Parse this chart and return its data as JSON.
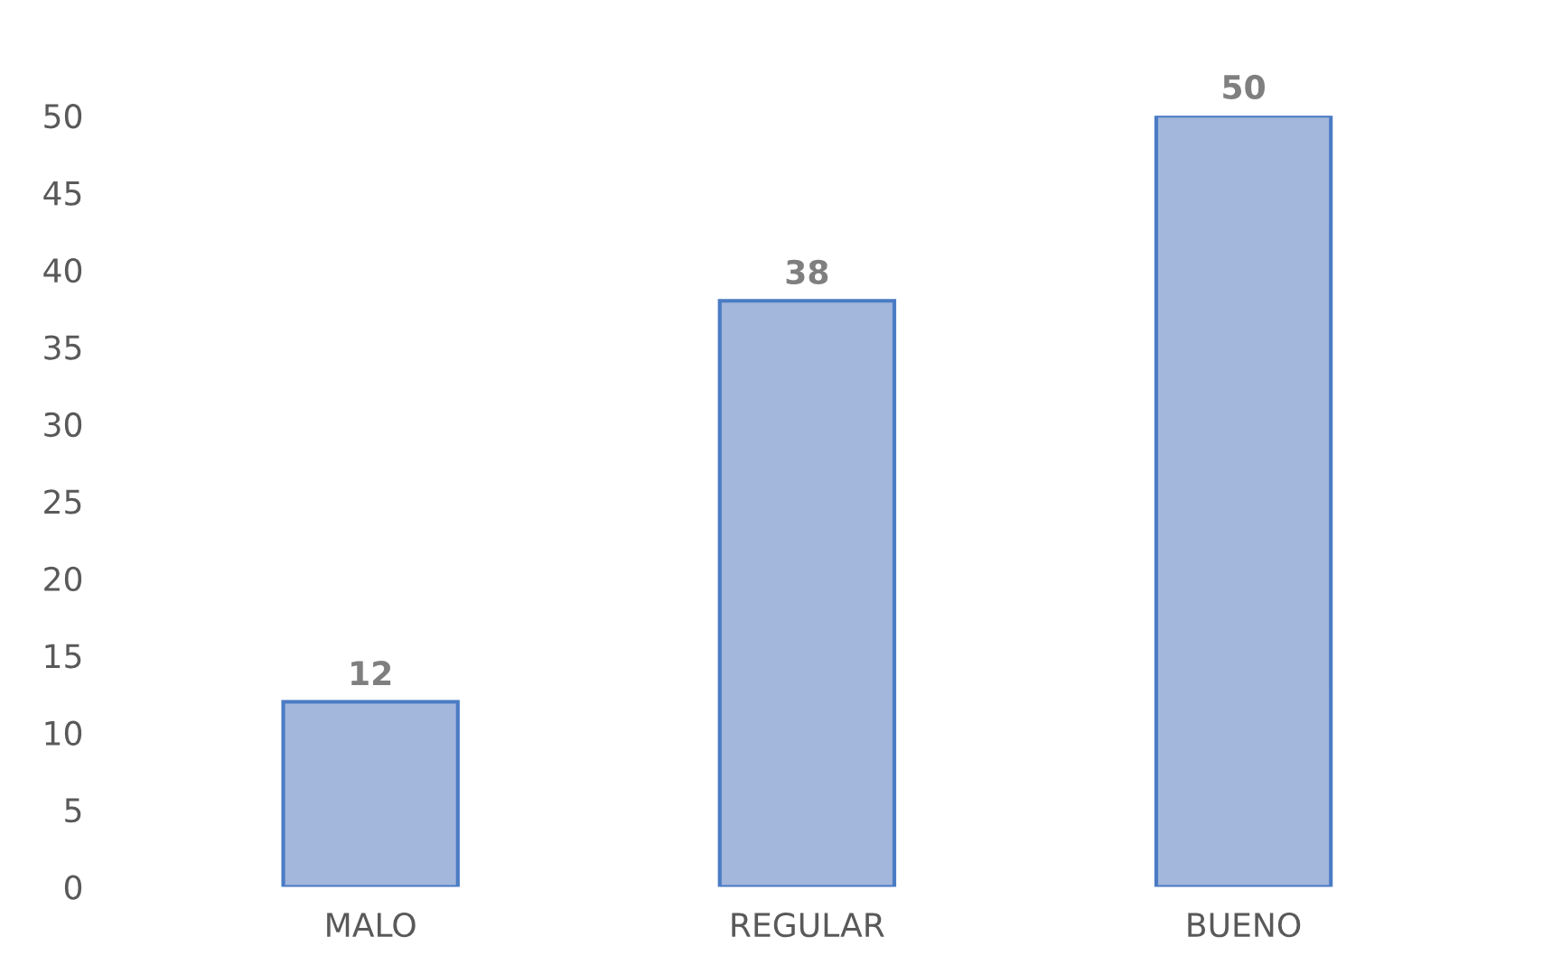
{
  "chart_data": {
    "type": "bar",
    "categories": [
      "MALO",
      "REGULAR",
      "BUENO"
    ],
    "values": [
      12,
      38,
      50
    ],
    "color": "#a3b6dc",
    "ylim": [
      0,
      50
    ],
    "yticks": [
      0,
      5,
      10,
      15,
      20,
      25,
      30,
      35,
      40,
      45,
      50
    ],
    "data_labels": true,
    "grid": false
  }
}
